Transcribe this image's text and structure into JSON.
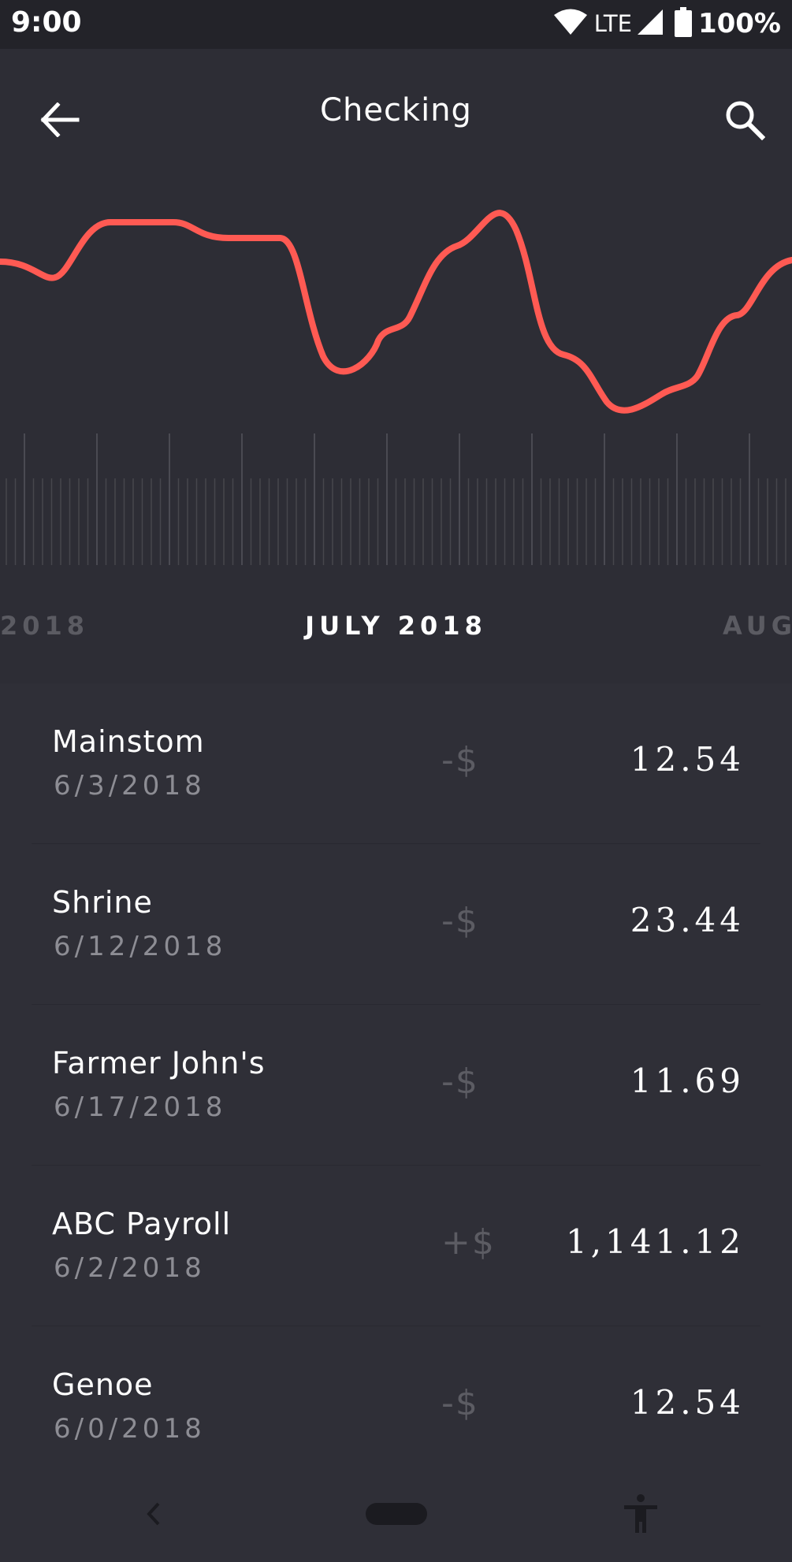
{
  "status_bar": {
    "time": "9:00",
    "network": "LTE",
    "battery": "100%",
    "icons": [
      "wifi-icon",
      "cell-signal-icon",
      "battery-icon"
    ]
  },
  "app_bar": {
    "title": "Checking",
    "icons": [
      "back-arrow-icon",
      "search-icon"
    ]
  },
  "colors": {
    "accent": "#ff5a53",
    "background": "#2d2d35",
    "list_background": "#2f2f37"
  },
  "month_selector": {
    "previous": "2018",
    "current": "JULY 2018",
    "next": "AUG"
  },
  "transactions": [
    {
      "name": "Mainstom",
      "date": "6/3/2018",
      "sign": "-$",
      "amount": "12.54"
    },
    {
      "name": "Shrine",
      "date": "6/12/2018",
      "sign": "-$",
      "amount": "23.44"
    },
    {
      "name": "Farmer John's",
      "date": "6/17/2018",
      "sign": "-$",
      "amount": "11.69"
    },
    {
      "name": "ABC Payroll",
      "date": "6/2/2018",
      "sign": "+$",
      "amount": "1,141.12"
    },
    {
      "name": "Genoe",
      "date": "6/0/2018",
      "sign": "-$",
      "amount": "12.54"
    }
  ],
  "nav_bar": {
    "icons": [
      "nav-back-icon",
      "home-pill",
      "accessibility-icon"
    ]
  }
}
